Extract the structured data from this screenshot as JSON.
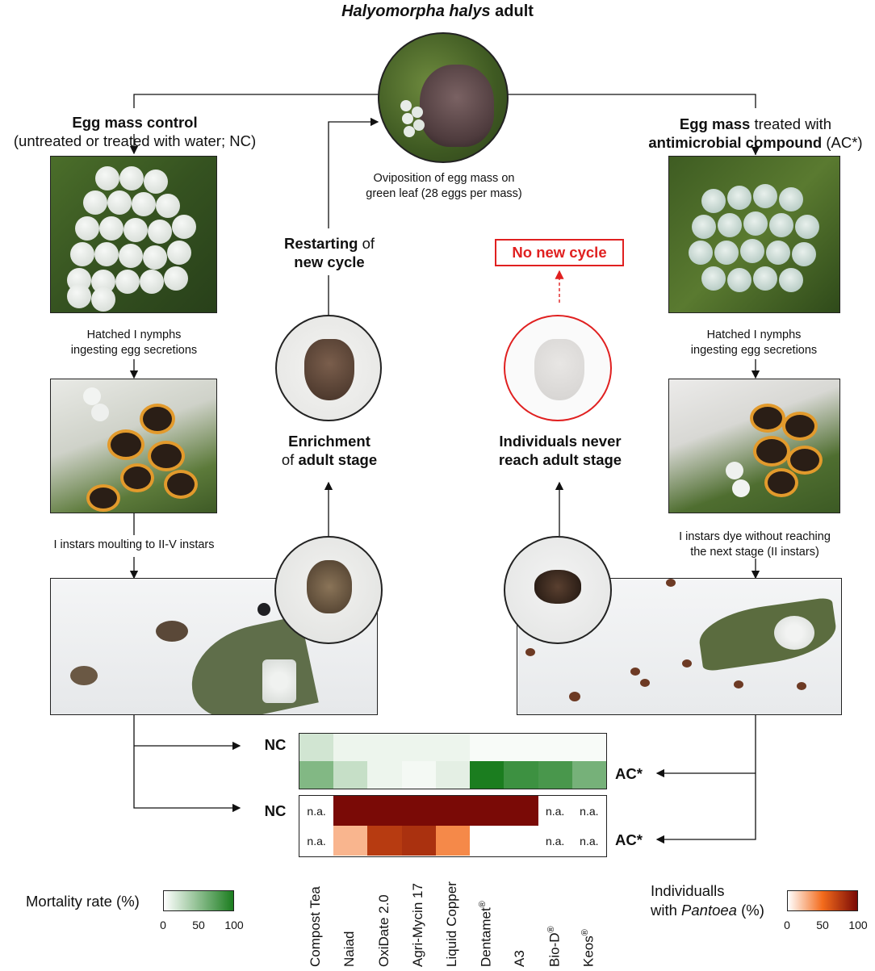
{
  "title": {
    "species": "Halyomorpha halys",
    "rest": " adult"
  },
  "oviposition": {
    "line1": "Oviposition of egg mass on",
    "line2": "green leaf (28 eggs per mass)"
  },
  "left": {
    "head_bold": "Egg mass control",
    "head_sub": "(untreated or treated with water; NC)",
    "step1_l1": "Hatched I nymphs",
    "step1_l2": "ingesting egg secretions",
    "step2": "I instars moulting to II-V instars"
  },
  "right": {
    "head_bold": "Egg mass",
    "head_rest": " treated with",
    "head_l2_bold": "antimicrobial compound",
    "head_l2_rest": " (AC*)",
    "step1_l1": "Hatched I nymphs",
    "step1_l2": "ingesting egg secretions",
    "step2_l1": "I instars dye without reaching",
    "step2_l2": "the next stage (II instars)"
  },
  "center_left": {
    "restart_bold": "Restarting",
    "restart_rest": " of",
    "restart_l2": "new cycle",
    "enrich_l1": "Enrichment",
    "enrich_l2_rest": "of ",
    "enrich_l2_bold": "adult stage"
  },
  "center_right": {
    "no_new": "No new cycle",
    "never_l1": "Individuals never",
    "never_l2": "reach adult stage"
  },
  "heatmap": {
    "row_labels": {
      "nc": "NC",
      "ac": "AC*"
    },
    "na_label": "n.a.",
    "columns": [
      "Compost Tea",
      "Naiad",
      "OxiDate 2.0",
      "Agri-Mycin 17",
      "Liquid Copper",
      "Dentamet",
      "A3",
      "Bio-D",
      "Keos"
    ],
    "registered": [
      false,
      false,
      false,
      false,
      false,
      true,
      false,
      true,
      true
    ],
    "registered_mark": "®",
    "mortality_nc": [
      20,
      8,
      8,
      8,
      8,
      3,
      3,
      3,
      3
    ],
    "mortality_ac": [
      55,
      25,
      8,
      5,
      12,
      100,
      85,
      80,
      60
    ],
    "pantoea_nc": [
      null,
      100,
      100,
      100,
      100,
      100,
      100,
      null,
      null
    ],
    "pantoea_ac": [
      null,
      25,
      75,
      80,
      40,
      0,
      0,
      null,
      null
    ]
  },
  "colors": {
    "green_high": "#1b7d1f",
    "red_high": "#7a0a06",
    "orange_mid": "#f36b1c",
    "no_cycle_red": "#e02020"
  },
  "legend_mortality": {
    "label": "Mortality rate (%)",
    "ticks": [
      "0",
      "50",
      "100"
    ]
  },
  "legend_pantoea": {
    "label_l1": "Individualls",
    "label_l2_italic": "Pantoea",
    "label_l2_rest": " (%)",
    "ticks": [
      "0",
      "50",
      "100"
    ]
  }
}
